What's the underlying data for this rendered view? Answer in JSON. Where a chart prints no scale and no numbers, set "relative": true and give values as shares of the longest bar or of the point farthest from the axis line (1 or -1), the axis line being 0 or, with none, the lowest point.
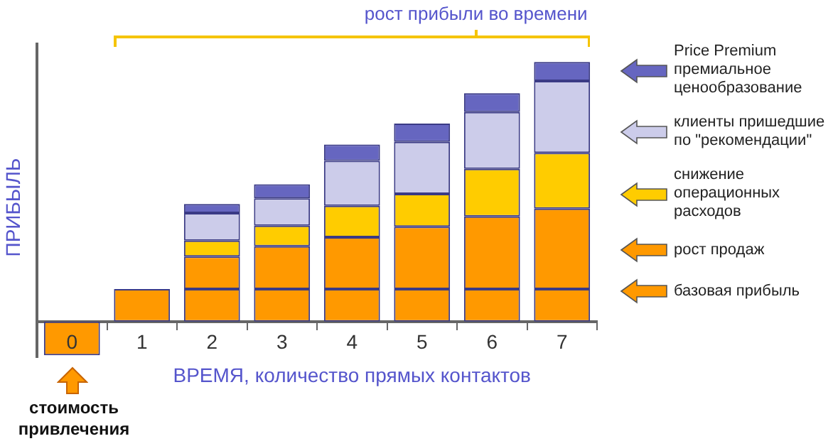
{
  "chart_data": {
    "type": "bar",
    "stacked": true,
    "relative": true,
    "legend": "right",
    "xlabel": "ВРЕМЯ, количество прямых контактов",
    "ylabel": "ПРИБЫЛЬ",
    "categories": [
      "0",
      "1",
      "2",
      "3",
      "4",
      "5",
      "6",
      "7"
    ],
    "series": [
      {
        "name": "базовая прибыль",
        "color": "#ff9900",
        "values": [
          -0.13,
          0.125,
          0.125,
          0.125,
          0.125,
          0.125,
          0.125,
          0.125
        ]
      },
      {
        "name": "рост продаж",
        "color": "#ff9900",
        "values": [
          null,
          null,
          0.125,
          0.165,
          0.2,
          0.24,
          0.28,
          0.31
        ]
      },
      {
        "name": "снижение операционных расходов",
        "color": "#ffcc00",
        "values": [
          null,
          null,
          0.062,
          0.079,
          0.121,
          0.127,
          0.183,
          0.215
        ]
      },
      {
        "name": "клиенты пришедшие по \"рекомендации\"",
        "color": "#ccccea",
        "values": [
          null,
          null,
          0.106,
          0.106,
          0.173,
          0.2,
          0.219,
          0.277
        ]
      },
      {
        "name": "Price Premium премиальное ценообразование",
        "color": "#6666c0",
        "values": [
          null,
          null,
          0.035,
          0.054,
          0.063,
          0.071,
          0.073,
          0.073
        ]
      }
    ],
    "annotations": [
      "рост прибыли во времени",
      {
        "text": "стоимость привлечения",
        "x": "0",
        "y": -0.13
      }
    ]
  }
}
